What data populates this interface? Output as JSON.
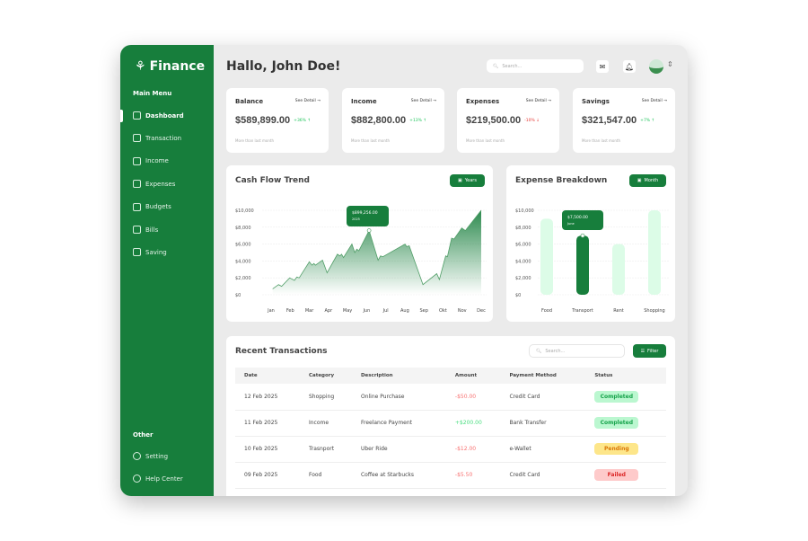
{
  "app": {
    "name": "Finance",
    "greeting": "Hallo, John Doe!",
    "search_placeholder": "Search..."
  },
  "sidebar": {
    "main_label": "Main Menu",
    "items": [
      {
        "label": "Dashboard",
        "icon": "grid-icon"
      },
      {
        "label": "Transaction",
        "icon": "clipboard-icon"
      },
      {
        "label": "Income",
        "icon": "money-bag-icon"
      },
      {
        "label": "Expenses",
        "icon": "wallet-icon"
      },
      {
        "label": "Budgets",
        "icon": "wallet-card-icon"
      },
      {
        "label": "Bills",
        "icon": "bill-icon"
      },
      {
        "label": "Saving",
        "icon": "piggy-bank-icon"
      }
    ],
    "other_label": "Other",
    "other_items": [
      {
        "label": "Setting",
        "icon": "gear-icon"
      },
      {
        "label": "Help Center",
        "icon": "headset-icon"
      }
    ]
  },
  "cards": [
    {
      "label": "Balance",
      "value": "$589,899.00",
      "change": "+36% ↑",
      "sub": "More than last month",
      "see": "See Detail →",
      "color": "#22c55e"
    },
    {
      "label": "Income",
      "value": "$882,800.00",
      "change": "+13% ↑",
      "sub": "More than last month",
      "see": "See Detail →",
      "color": "#22c55e"
    },
    {
      "label": "Expenses",
      "value": "$219,500.00",
      "change": "-10% ↓",
      "sub": "More than last month",
      "see": "See Detail →",
      "color": "#e53935"
    },
    {
      "label": "Savings",
      "value": "$321,547.00",
      "change": "+7% ↑",
      "sub": "More than last month",
      "see": "See Detail →",
      "color": "#22c55e"
    }
  ],
  "cashflow": {
    "title": "Cash Flow Trend",
    "button": "Years",
    "tooltip_value": "$899,256.00",
    "tooltip_label": "2025"
  },
  "expense": {
    "title": "Expense Breakdown",
    "button": "Month",
    "tooltip_value": "$7,500.00",
    "tooltip_label": "June"
  },
  "chart_data": [
    {
      "type": "area",
      "title": "Cash Flow Trend",
      "categories": [
        "Jan",
        "Feb",
        "Mar",
        "Apr",
        "May",
        "Jun",
        "Jul",
        "Aug",
        "Sep",
        "Okt",
        "Nov",
        "Dec"
      ],
      "yticks": [
        "$0",
        "$2,000",
        "$4,000",
        "$6,000",
        "$8,000",
        "$10,000"
      ],
      "ylim": [
        0,
        10000
      ],
      "grid": true,
      "points": [
        [
          0.08,
          700
        ],
        [
          0.39,
          1200
        ],
        [
          0.55,
          1000
        ],
        [
          0.97,
          2000
        ],
        [
          1.22,
          1700
        ],
        [
          1.35,
          2100
        ],
        [
          1.47,
          2000
        ],
        [
          2.0,
          3900
        ],
        [
          2.14,
          3500
        ],
        [
          2.24,
          3700
        ],
        [
          2.32,
          3500
        ],
        [
          2.69,
          4100
        ],
        [
          2.93,
          2600
        ],
        [
          3.47,
          4800
        ],
        [
          3.6,
          4600
        ],
        [
          3.69,
          4800
        ],
        [
          3.79,
          4400
        ],
        [
          4.23,
          6000
        ],
        [
          4.38,
          5000
        ],
        [
          4.49,
          5400
        ],
        [
          4.59,
          5200
        ],
        [
          5.13,
          7600
        ],
        [
          5.6,
          4100
        ],
        [
          5.73,
          4600
        ],
        [
          5.85,
          4500
        ],
        [
          7.01,
          6000
        ],
        [
          7.1,
          5700
        ],
        [
          7.23,
          5800
        ],
        [
          7.95,
          1200
        ],
        [
          8.67,
          2500
        ],
        [
          8.81,
          1800
        ],
        [
          9.14,
          4600
        ],
        [
          9.23,
          4500
        ],
        [
          9.45,
          6700
        ],
        [
          9.58,
          6600
        ],
        [
          9.98,
          7900
        ],
        [
          10.17,
          7600
        ],
        [
          11.0,
          10000
        ]
      ]
    },
    {
      "type": "bar",
      "title": "Expense Breakdown",
      "categories": [
        "Food",
        "Transport",
        "Rent",
        "Shopping"
      ],
      "values": [
        9000,
        7000,
        6000,
        10000
      ],
      "highlight": "Transport",
      "yticks": [
        "$0",
        "$2,000",
        "$4,000",
        "$6,000",
        "$8,000",
        "$10,000"
      ],
      "ylim": [
        0,
        10000
      ],
      "grid": true
    }
  ],
  "transactions": {
    "title": "Recent Transactions",
    "search_placeholder": "Search...",
    "filter": "Filter",
    "headers": [
      "Date",
      "Category",
      "Description",
      "Amount",
      "Payment Method",
      "Status"
    ],
    "rows": [
      [
        "12 Feb 2025",
        "Shopping",
        "Online Purchase",
        "-$50.00",
        "Credit Card",
        "Completed"
      ],
      [
        "11 Feb 2025",
        "Income",
        "Freelance Payment",
        "+$200.00",
        "Bank Transfer",
        "Completed"
      ],
      [
        "10 Feb 2025",
        "Trasnport",
        "Uber Ride",
        "-$12.00",
        "e-Wallet",
        "Pending"
      ],
      [
        "09 Feb 2025",
        "Food",
        "Coffee at Starbucks",
        "-$5.50",
        "Credit Card",
        "Failed"
      ]
    ]
  },
  "colors": {
    "brand": "#177e3c",
    "light_bar": "#dcfce7",
    "negative": "#f87171",
    "positive": "#4ade80"
  }
}
